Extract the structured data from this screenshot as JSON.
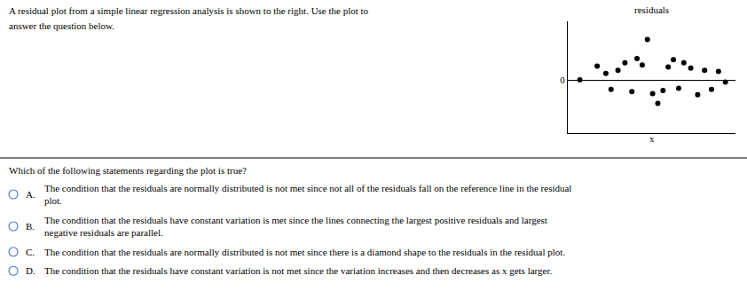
{
  "chart_data": {
    "type": "scatter",
    "x": [
      0.12,
      0.22,
      0.27,
      0.3,
      0.34,
      0.38,
      0.42,
      0.45,
      0.48,
      0.51,
      0.54,
      0.57,
      0.6,
      0.63,
      0.66,
      0.69,
      0.72,
      0.76,
      0.8,
      0.84,
      0.88,
      0.92,
      0.96
    ],
    "values": [
      0.0,
      0.13,
      0.06,
      -0.09,
      0.09,
      0.16,
      -0.11,
      0.2,
      0.14,
      0.38,
      -0.13,
      -0.22,
      -0.1,
      0.12,
      0.19,
      -0.08,
      0.16,
      0.11,
      -0.14,
      0.09,
      -0.09,
      0.08,
      -0.02
    ],
    "color": "#000000",
    "xlabel": "x",
    "ylabel": "residuals",
    "xlim": [
      0.05,
      1.02
    ],
    "ylim": [
      -0.5,
      0.55
    ],
    "xticks": [],
    "yticks": [
      0
    ],
    "tick_labels": "y",
    "grid": false,
    "annotations": [
      [
        "A residual plot from a simple linear regression analysis is shown to the right. Use the plot to",
        "answer the question below."
      ],
      [
        "Which of the following statements regarding the plot is true?",
        [
          "A.",
          "The condition that the residuals are normally distributed is not met since not all of the residuals fall on the reference line in the residual\nplot."
        ],
        [
          "B.",
          "The condition that the residuals have constant variation is met since the lines connecting the largest positive residuals and largest\nnegative residuals are parallel."
        ],
        [
          "C.",
          "The condition that the residuals are normally distributed is not met since there is a diamond shape to the residuals in the residual plot."
        ],
        [
          "D.",
          "The condition that the residuals have constant variation is not met since the variation increases and then decreases as x gets larger."
        ]
      ]
    ]
  }
}
